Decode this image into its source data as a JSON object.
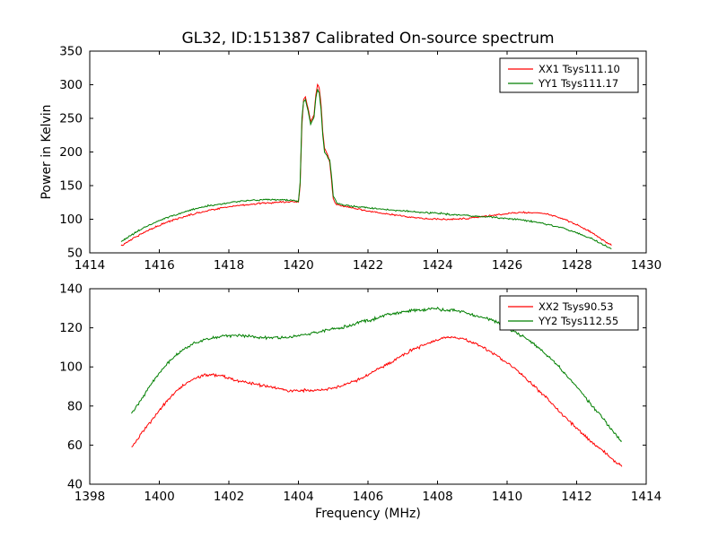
{
  "figure": {
    "background_color": "#ffffff",
    "accent_red": "#ff0000",
    "accent_green": "#007f00"
  },
  "chart_data": [
    {
      "type": "line",
      "title": "GL32, ID:151387 Calibrated On-source spectrum",
      "xlabel": "",
      "ylabel": "Power in Kelvin",
      "xlim": [
        1414,
        1430
      ],
      "ylim": [
        50,
        350
      ],
      "xticks": [
        1414,
        1416,
        1418,
        1420,
        1422,
        1424,
        1426,
        1428,
        1430
      ],
      "yticks": [
        50,
        100,
        150,
        200,
        250,
        300,
        350
      ],
      "grid": false,
      "legend_position": "upper-right",
      "series": [
        {
          "name": "XX1 Tsys111.10",
          "color": "#ff0000",
          "noise": 1.5,
          "x": [
            1414.9,
            1415.1,
            1415.4,
            1415.7,
            1416.0,
            1416.3,
            1416.6,
            1417.0,
            1417.4,
            1417.8,
            1418.2,
            1418.6,
            1419.0,
            1419.4,
            1419.8,
            1420.0,
            1420.05,
            1420.1,
            1420.15,
            1420.2,
            1420.3,
            1420.35,
            1420.45,
            1420.5,
            1420.55,
            1420.6,
            1420.65,
            1420.7,
            1420.75,
            1420.85,
            1420.9,
            1420.95,
            1421.0,
            1421.1,
            1421.3,
            1421.6,
            1422.0,
            1422.4,
            1422.8,
            1423.2,
            1423.6,
            1424.0,
            1424.4,
            1424.8,
            1425.2,
            1425.6,
            1426.0,
            1426.4,
            1426.8,
            1427.2,
            1427.6,
            1428.0,
            1428.4,
            1428.7,
            1429.0
          ],
          "y": [
            60,
            67,
            76,
            84,
            91,
            97,
            102,
            108,
            113,
            117,
            120,
            122,
            124,
            125,
            126,
            126,
            150,
            240,
            278,
            282,
            260,
            245,
            255,
            285,
            300,
            295,
            270,
            230,
            205,
            195,
            185,
            160,
            130,
            122,
            119,
            116,
            112,
            109,
            106,
            103,
            101,
            100,
            100,
            101,
            103,
            106,
            108,
            110,
            110,
            107,
            101,
            92,
            81,
            71,
            61
          ]
        },
        {
          "name": "YY1 Tsys111.17",
          "color": "#007f00",
          "noise": 1.5,
          "x": [
            1414.9,
            1415.1,
            1415.4,
            1415.7,
            1416.0,
            1416.3,
            1416.6,
            1417.0,
            1417.4,
            1417.8,
            1418.2,
            1418.6,
            1419.0,
            1419.4,
            1419.8,
            1420.0,
            1420.05,
            1420.1,
            1420.15,
            1420.2,
            1420.3,
            1420.35,
            1420.45,
            1420.5,
            1420.55,
            1420.6,
            1420.65,
            1420.7,
            1420.75,
            1420.85,
            1420.9,
            1420.95,
            1421.0,
            1421.1,
            1421.3,
            1421.6,
            1422.0,
            1422.4,
            1422.8,
            1423.2,
            1423.6,
            1424.0,
            1424.4,
            1424.8,
            1425.2,
            1425.6,
            1426.0,
            1426.4,
            1426.8,
            1427.2,
            1427.6,
            1428.0,
            1428.4,
            1428.7,
            1429.0
          ],
          "y": [
            66,
            73,
            83,
            91,
            98,
            104,
            109,
            115,
            120,
            123,
            126,
            128,
            129,
            129,
            128,
            127,
            155,
            250,
            275,
            278,
            255,
            242,
            252,
            280,
            293,
            288,
            262,
            225,
            200,
            192,
            188,
            165,
            135,
            124,
            121,
            119,
            117,
            115,
            113,
            112,
            110,
            109,
            107,
            106,
            104,
            103,
            101,
            99,
            96,
            92,
            87,
            80,
            72,
            64,
            56
          ]
        }
      ]
    },
    {
      "type": "line",
      "title": "",
      "xlabel": "Frequency (MHz)",
      "ylabel": "",
      "xlim": [
        1398,
        1414
      ],
      "ylim": [
        40,
        140
      ],
      "xticks": [
        1398,
        1400,
        1402,
        1404,
        1406,
        1408,
        1410,
        1412,
        1414
      ],
      "yticks": [
        40,
        60,
        80,
        100,
        120,
        140
      ],
      "grid": false,
      "legend_position": "upper-right",
      "series": [
        {
          "name": "XX2 Tsys90.53",
          "color": "#ff0000",
          "noise": 0.9,
          "x": [
            1399.2,
            1399.5,
            1399.8,
            1400.1,
            1400.4,
            1400.7,
            1401.0,
            1401.3,
            1401.6,
            1401.9,
            1402.2,
            1402.5,
            1402.8,
            1403.1,
            1403.4,
            1403.7,
            1404.0,
            1404.3,
            1404.6,
            1404.9,
            1405.2,
            1405.5,
            1405.8,
            1406.1,
            1406.4,
            1406.7,
            1407.0,
            1407.3,
            1407.6,
            1407.9,
            1408.2,
            1408.5,
            1408.8,
            1409.1,
            1409.4,
            1409.7,
            1410.0,
            1410.3,
            1410.6,
            1410.9,
            1411.2,
            1411.5,
            1411.8,
            1412.1,
            1412.4,
            1412.7,
            1413.0,
            1413.3
          ],
          "y": [
            59,
            66,
            73,
            80,
            86,
            91,
            94,
            96,
            96,
            95,
            93,
            92,
            91,
            90,
            89,
            88,
            88,
            88,
            88,
            89,
            90,
            92,
            94,
            97,
            100,
            103,
            106,
            109,
            111,
            113,
            115,
            115,
            114,
            112,
            109,
            106,
            102,
            98,
            93,
            88,
            83,
            77,
            72,
            67,
            62,
            58,
            53,
            49
          ]
        },
        {
          "name": "YY2 Tsys112.55",
          "color": "#007f00",
          "noise": 0.9,
          "x": [
            1399.2,
            1399.5,
            1399.8,
            1400.1,
            1400.4,
            1400.7,
            1401.0,
            1401.3,
            1401.6,
            1401.9,
            1402.2,
            1402.5,
            1402.8,
            1403.1,
            1403.4,
            1403.7,
            1404.0,
            1404.3,
            1404.6,
            1404.9,
            1405.2,
            1405.5,
            1405.8,
            1406.1,
            1406.4,
            1406.7,
            1407.0,
            1407.3,
            1407.6,
            1407.9,
            1408.2,
            1408.5,
            1408.8,
            1409.1,
            1409.4,
            1409.7,
            1410.0,
            1410.3,
            1410.6,
            1410.9,
            1411.2,
            1411.5,
            1411.8,
            1412.1,
            1412.4,
            1412.7,
            1413.0,
            1413.3
          ],
          "y": [
            76,
            84,
            92,
            99,
            105,
            109,
            112,
            114,
            115,
            116,
            116,
            116,
            115,
            115,
            115,
            115,
            116,
            117,
            118,
            119,
            120,
            121,
            123,
            124,
            126,
            127,
            128,
            129,
            129,
            130,
            129,
            129,
            128,
            126,
            125,
            123,
            120,
            117,
            114,
            110,
            105,
            100,
            94,
            88,
            81,
            75,
            68,
            62
          ]
        }
      ]
    }
  ]
}
